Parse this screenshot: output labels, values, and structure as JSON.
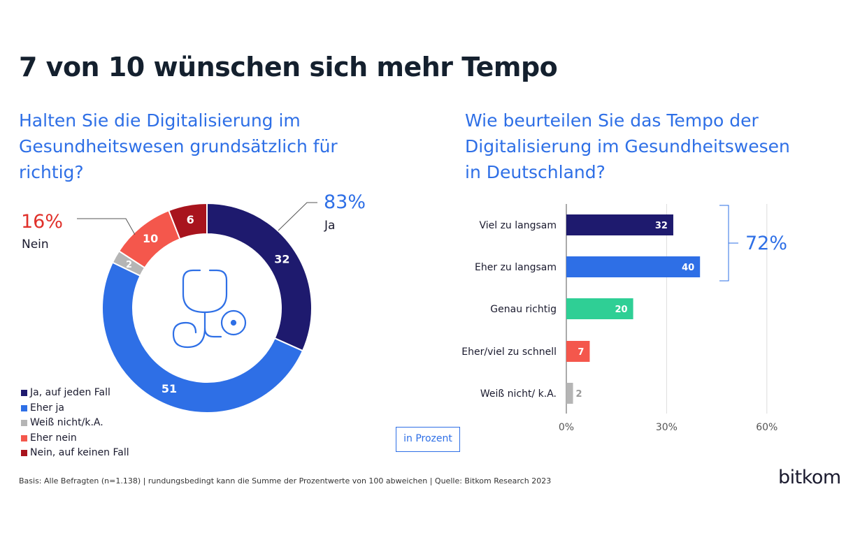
{
  "title": "7 von 10 wünschen sich mehr Tempo",
  "colors": {
    "navy": "#1e1a6e",
    "blue": "#2e6fe6",
    "gray": "#b5b5b5",
    "coral": "#f4574c",
    "darkred": "#a8141d",
    "green": "#2fcf95",
    "question": "#2e6fe6",
    "red_text": "#e0302a"
  },
  "icon": "stethoscope-icon",
  "chart_data": [
    {
      "type": "pie",
      "title": "Halten Sie die Digitalisierung im\nGesundheitswesen grundsätzlich für\nrichtig?",
      "categories": [
        "Ja, auf jeden Fall",
        "Eher ja",
        "Weiß nicht/k.A.",
        "Eher nein",
        "Nein, auf keinen Fall"
      ],
      "values": [
        32,
        51,
        2,
        10,
        6
      ],
      "legend_position": "bottom-left",
      "summaries": [
        {
          "value": "83%",
          "label": "Ja"
        },
        {
          "value": "16%",
          "label": "Nein"
        }
      ]
    },
    {
      "type": "bar",
      "orientation": "horizontal",
      "title": "Wie beurteilen Sie das Tempo der\nDigitalisierung im Gesundheitswesen\nin Deutschland?",
      "categories": [
        "Viel zu langsam",
        "Eher zu langsam",
        "Genau richtig",
        "Eher/viel zu schnell",
        "Weiß nicht/ k.A."
      ],
      "values": [
        32,
        40,
        20,
        7,
        2
      ],
      "xlim": [
        0,
        70
      ],
      "ticks": [
        "0%",
        "30%",
        "60%"
      ],
      "tick_values": [
        0,
        30,
        60
      ],
      "grid": true,
      "bracket": {
        "value": "72%",
        "categories": [
          "Viel zu langsam",
          "Eher zu langsam"
        ]
      }
    }
  ],
  "unit_label": "in Prozent",
  "footnote": "Basis: Alle Befragten (n=1.138) | rundungsbedingt kann die Summe der Prozentwerte von 100 abweichen | Quelle: Bitkom Research 2023",
  "logo": "bitkom"
}
